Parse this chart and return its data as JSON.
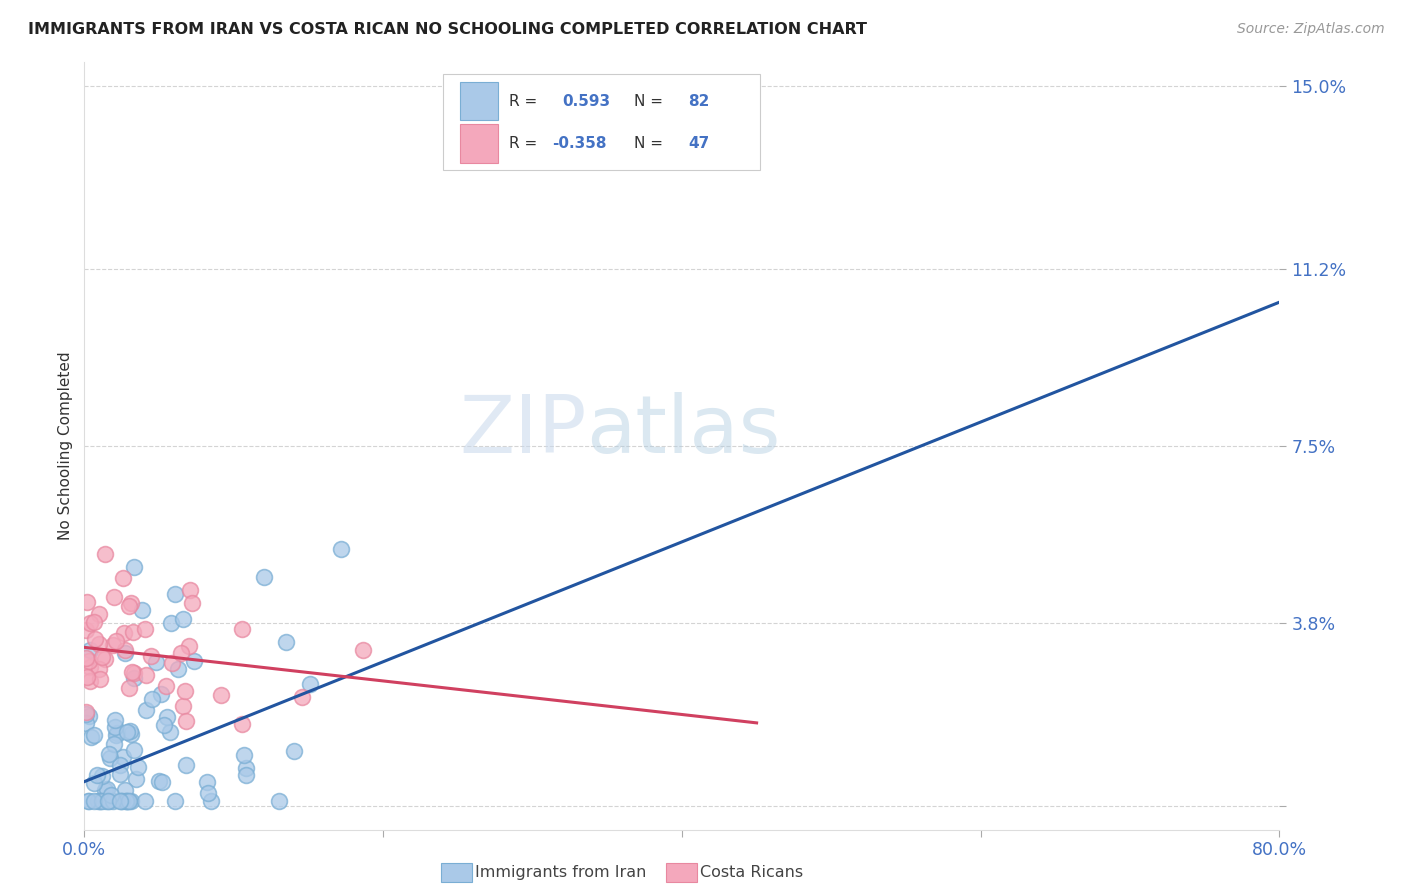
{
  "title": "IMMIGRANTS FROM IRAN VS COSTA RICAN NO SCHOOLING COMPLETED CORRELATION CHART",
  "source": "Source: ZipAtlas.com",
  "ylabel": "No Schooling Completed",
  "xlim": [
    0.0,
    0.8
  ],
  "ylim": [
    -0.005,
    0.155
  ],
  "blue_R": 0.593,
  "blue_N": 82,
  "pink_R": -0.358,
  "pink_N": 47,
  "legend_label_blue": "Immigrants from Iran",
  "legend_label_pink": "Costa Ricans",
  "blue_color": "#aac9e8",
  "pink_color": "#f4a8bc",
  "blue_edge_color": "#7aaed4",
  "pink_edge_color": "#e888a0",
  "blue_line_color": "#2255a0",
  "pink_line_color": "#d04060",
  "watermark_zip": "ZIP",
  "watermark_atlas": "atlas",
  "background_color": "#ffffff",
  "grid_color": "#d0d0d0",
  "y_tick_positions": [
    0.0,
    0.038,
    0.075,
    0.112,
    0.15
  ],
  "y_tick_labels": [
    "",
    "3.8%",
    "7.5%",
    "11.2%",
    "15.0%"
  ],
  "x_tick_positions": [
    0.0,
    0.2,
    0.4,
    0.6,
    0.8
  ],
  "x_tick_labels": [
    "0.0%",
    "",
    "",
    "",
    "80.0%"
  ],
  "title_color": "#222222",
  "axis_label_color": "#333333",
  "tick_color": "#4472c4",
  "source_color": "#999999"
}
